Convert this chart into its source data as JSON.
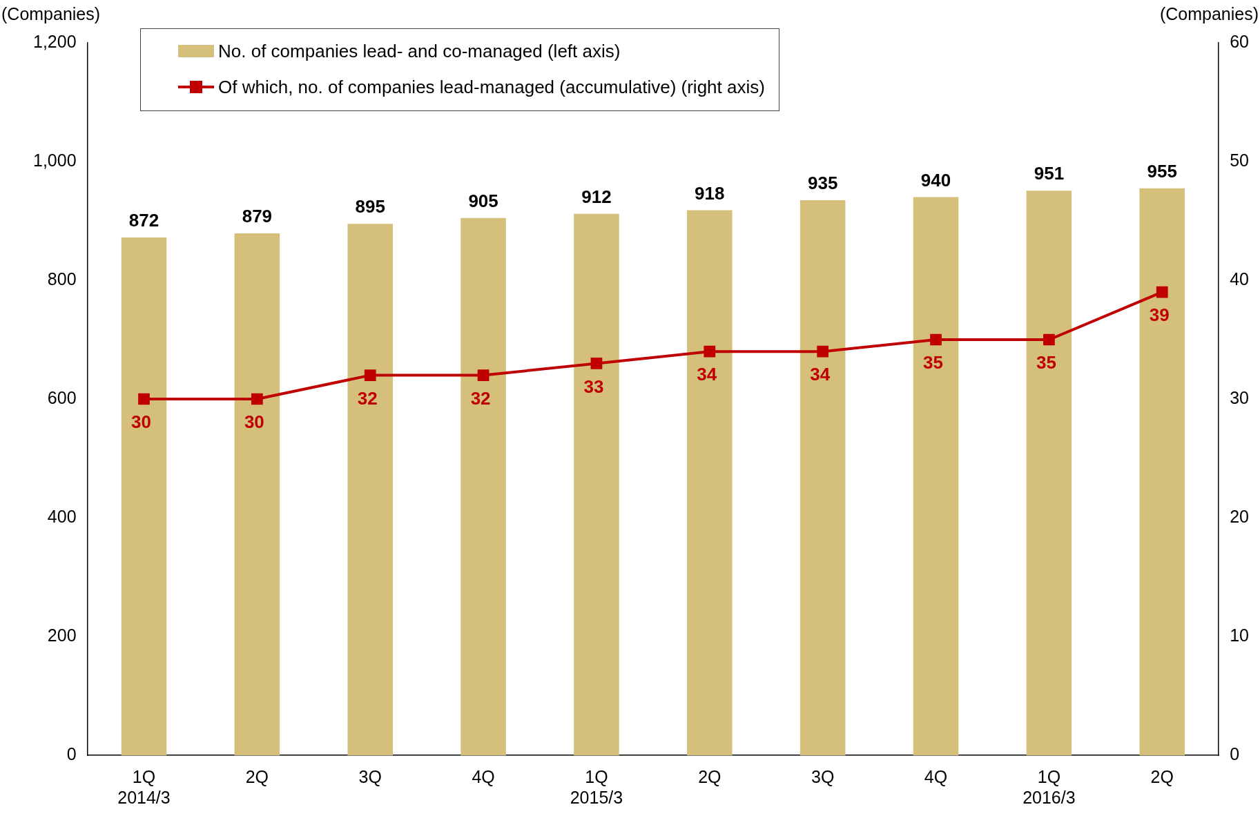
{
  "chart_data": {
    "type": "bar",
    "ylabel": "(Companies)",
    "y2label": "(Companies)",
    "categories": [
      "1Q\n2014/3",
      "2Q",
      "3Q",
      "4Q",
      "1Q\n2015/3",
      "2Q",
      "3Q",
      "4Q",
      "1Q\n2016/3",
      "2Q"
    ],
    "series": [
      {
        "name": "No. of companies lead- and co-managed (left axis)",
        "color": "#d4c07a",
        "values": [
          872,
          879,
          895,
          905,
          912,
          918,
          935,
          940,
          951,
          955
        ]
      },
      {
        "name": "Of which, no. of companies lead-managed (accumulative) (right axis)",
        "type": "line",
        "axis": "y2",
        "color": "#c00000",
        "values": [
          30,
          30,
          32,
          32,
          33,
          34,
          34,
          35,
          35,
          39
        ]
      }
    ],
    "ylim": [
      0,
      1200
    ],
    "yticks": [
      0,
      200,
      400,
      600,
      800,
      {
        "value": 1000,
        "label": "1,000"
      },
      {
        "value": 1200,
        "label": "1,200"
      }
    ],
    "y2lim": [
      0,
      60
    ],
    "y2ticks": [
      0,
      10,
      20,
      30,
      40,
      50,
      60
    ],
    "data_labels": true,
    "legend": "top left",
    "grid": false,
    "marker": "square",
    "line_style": "solid"
  }
}
